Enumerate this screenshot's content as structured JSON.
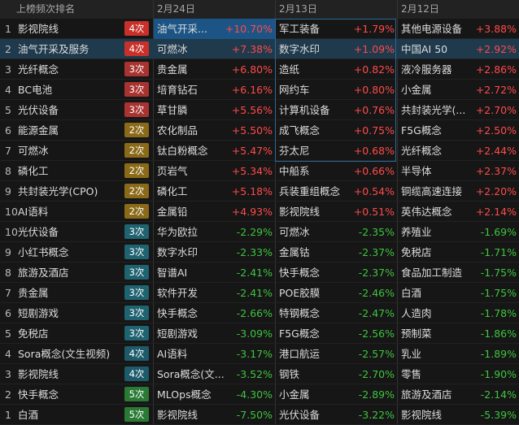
{
  "header": {
    "rank_title": "上榜频次排名",
    "dates": [
      "2月24日",
      "2月13日",
      "2月12日"
    ]
  },
  "rows": [
    {
      "rank": "1",
      "name": "影视院线",
      "count": "4次",
      "days": [
        {
          "name": "油气开采...",
          "change": "+10.70%"
        },
        {
          "name": "军工装备",
          "change": "+1.79%"
        },
        {
          "name": "其他电源设备",
          "change": "+3.88%"
        }
      ]
    },
    {
      "rank": "2",
      "name": "油气开采及服务",
      "count": "4次",
      "days": [
        {
          "name": "可燃冰",
          "change": "+7.38%"
        },
        {
          "name": "数字水印",
          "change": "+1.09%"
        },
        {
          "name": "中国AI 50",
          "change": "+2.92%"
        }
      ]
    },
    {
      "rank": "3",
      "name": "光纤概念",
      "count": "3次",
      "days": [
        {
          "name": "贵金属",
          "change": "+6.80%"
        },
        {
          "name": "造纸",
          "change": "+0.82%"
        },
        {
          "name": "液冷服务器",
          "change": "+2.86%"
        }
      ]
    },
    {
      "rank": "4",
      "name": "BC电池",
      "count": "3次",
      "days": [
        {
          "name": "培育钻石",
          "change": "+6.16%"
        },
        {
          "name": "网约车",
          "change": "+0.80%"
        },
        {
          "name": "小金属",
          "change": "+2.72%"
        }
      ]
    },
    {
      "rank": "5",
      "name": "光伏设备",
      "count": "3次",
      "days": [
        {
          "name": "草甘膦",
          "change": "+5.56%"
        },
        {
          "name": "计算机设备",
          "change": "+0.76%"
        },
        {
          "name": "共封装光学(...",
          "change": "+2.70%"
        }
      ]
    },
    {
      "rank": "6",
      "name": "能源金属",
      "count": "2次",
      "days": [
        {
          "name": "农化制品",
          "change": "+5.50%"
        },
        {
          "name": "成飞概念",
          "change": "+0.75%"
        },
        {
          "name": "F5G概念",
          "change": "+2.50%"
        }
      ]
    },
    {
      "rank": "7",
      "name": "可燃冰",
      "count": "2次",
      "days": [
        {
          "name": "钛白粉概念",
          "change": "+5.47%"
        },
        {
          "name": "芬太尼",
          "change": "+0.68%"
        },
        {
          "name": "光纤概念",
          "change": "+2.44%"
        }
      ]
    },
    {
      "rank": "8",
      "name": "磷化工",
      "count": "2次",
      "days": [
        {
          "name": "页岩气",
          "change": "+5.34%"
        },
        {
          "name": "中船系",
          "change": "+0.66%"
        },
        {
          "name": "半导体",
          "change": "+2.37%"
        }
      ]
    },
    {
      "rank": "9",
      "name": "共封装光学(CPO)",
      "count": "2次",
      "days": [
        {
          "name": "磷化工",
          "change": "+5.18%"
        },
        {
          "name": "兵装重组概念",
          "change": "+0.54%"
        },
        {
          "name": "铜缆高速连接",
          "change": "+2.20%"
        }
      ]
    },
    {
      "rank": "10",
      "name": "AI语料",
      "count": "2次",
      "days": [
        {
          "name": "金属铅",
          "change": "+4.93%"
        },
        {
          "name": "影视院线",
          "change": "+0.51%"
        },
        {
          "name": "英伟达概念",
          "change": "+2.14%"
        }
      ]
    },
    {
      "rank": "10",
      "name": "光伏设备",
      "count": "3次",
      "days": [
        {
          "name": "华为欧拉",
          "change": "-2.29%"
        },
        {
          "name": "可燃冰",
          "change": "-2.35%"
        },
        {
          "name": "养殖业",
          "change": "-1.69%"
        }
      ]
    },
    {
      "rank": "9",
      "name": "小红书概念",
      "count": "3次",
      "days": [
        {
          "name": "数字水印",
          "change": "-2.33%"
        },
        {
          "name": "金属钴",
          "change": "-2.37%"
        },
        {
          "name": "免税店",
          "change": "-1.71%"
        }
      ]
    },
    {
      "rank": "8",
      "name": "旅游及酒店",
      "count": "3次",
      "days": [
        {
          "name": "智谱AI",
          "change": "-2.41%"
        },
        {
          "name": "快手概念",
          "change": "-2.37%"
        },
        {
          "name": "食品加工制造",
          "change": "-1.75%"
        }
      ]
    },
    {
      "rank": "7",
      "name": "贵金属",
      "count": "3次",
      "days": [
        {
          "name": "软件开发",
          "change": "-2.41%"
        },
        {
          "name": "POE胶膜",
          "change": "-2.46%"
        },
        {
          "name": "白酒",
          "change": "-1.75%"
        }
      ]
    },
    {
      "rank": "6",
      "name": "短剧游戏",
      "count": "3次",
      "days": [
        {
          "name": "快手概念",
          "change": "-2.66%"
        },
        {
          "name": "特钢概念",
          "change": "-2.47%"
        },
        {
          "name": "人造肉",
          "change": "-1.78%"
        }
      ]
    },
    {
      "rank": "5",
      "name": "免税店",
      "count": "3次",
      "days": [
        {
          "name": "短剧游戏",
          "change": "-3.09%"
        },
        {
          "name": "F5G概念",
          "change": "-2.56%"
        },
        {
          "name": "预制菜",
          "change": "-1.86%"
        }
      ]
    },
    {
      "rank": "4",
      "name": "Sora概念(文生视频)",
      "count": "4次",
      "days": [
        {
          "name": "AI语料",
          "change": "-3.17%"
        },
        {
          "name": "港口航运",
          "change": "-2.57%"
        },
        {
          "name": "乳业",
          "change": "-1.89%"
        }
      ]
    },
    {
      "rank": "3",
      "name": "影视院线",
      "count": "4次",
      "days": [
        {
          "name": "Sora概念(文...",
          "change": "-3.52%"
        },
        {
          "name": "钢铁",
          "change": "-2.70%"
        },
        {
          "name": "零售",
          "change": "-1.90%"
        }
      ]
    },
    {
      "rank": "2",
      "name": "快手概念",
      "count": "5次",
      "days": [
        {
          "name": "MLOps概念",
          "change": "-4.30%"
        },
        {
          "name": "小金属",
          "change": "-2.89%"
        },
        {
          "name": "旅游及酒店",
          "change": "-2.14%"
        }
      ]
    },
    {
      "rank": "1",
      "name": "白酒",
      "count": "5次",
      "days": [
        {
          "name": "影视院线",
          "change": "-7.50%"
        },
        {
          "name": "光伏设备",
          "change": "-3.22%"
        },
        {
          "name": "影视院线",
          "change": "-5.39%"
        }
      ]
    }
  ]
}
